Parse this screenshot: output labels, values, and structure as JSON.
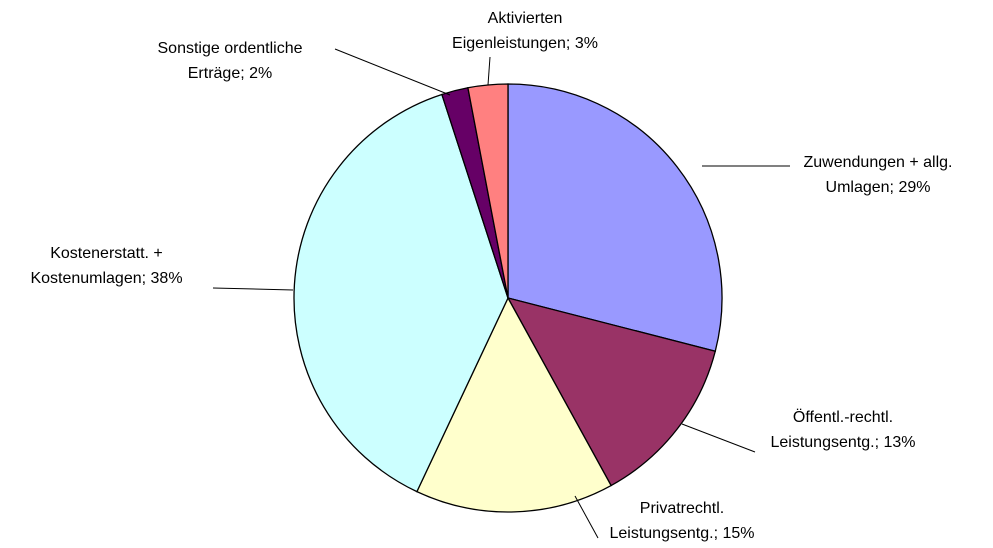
{
  "chart_data": {
    "type": "pie",
    "categories": [
      "Zuwendungen + allg. Umlagen;",
      "Öffentl.-rechtl. Leistungsentg.;",
      "Privatrechtl. Leistungsentg.;",
      "Kostenerstatt. + Kostenumlagen;",
      "Sonstige ordentliche Erträge;",
      "Aktivierten Eigenleistungen;"
    ],
    "values": [
      29,
      13,
      15,
      38,
      2,
      3
    ],
    "value_labels": [
      "29%",
      "13%",
      "15%",
      "38%",
      "2%",
      "3%"
    ],
    "colors": [
      "#9999ff",
      "#993366",
      "#ffffcc",
      "#ccffff",
      "#660066",
      "#ff8080"
    ]
  }
}
